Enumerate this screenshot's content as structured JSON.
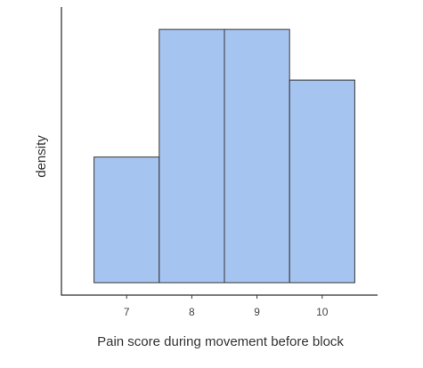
{
  "chart_data": {
    "type": "histogram",
    "xlabel": "Pain score during movement before block",
    "ylabel": "density",
    "x_ticks": [
      7,
      8,
      9,
      10
    ],
    "bins": [
      {
        "from": 6.5,
        "to": 7.5,
        "value": 0.62
      },
      {
        "from": 7.5,
        "to": 8.5,
        "value": 1.25
      },
      {
        "from": 8.5,
        "to": 9.5,
        "value": 1.25
      },
      {
        "from": 9.5,
        "to": 10.5,
        "value": 1.0
      }
    ],
    "xlim": [
      6.0,
      10.85
    ],
    "ylim": [
      0,
      1.29
    ],
    "y_ticks_shown": false,
    "grid": false,
    "bar_color": "#a6c4f0",
    "edge_color": "#333333"
  }
}
